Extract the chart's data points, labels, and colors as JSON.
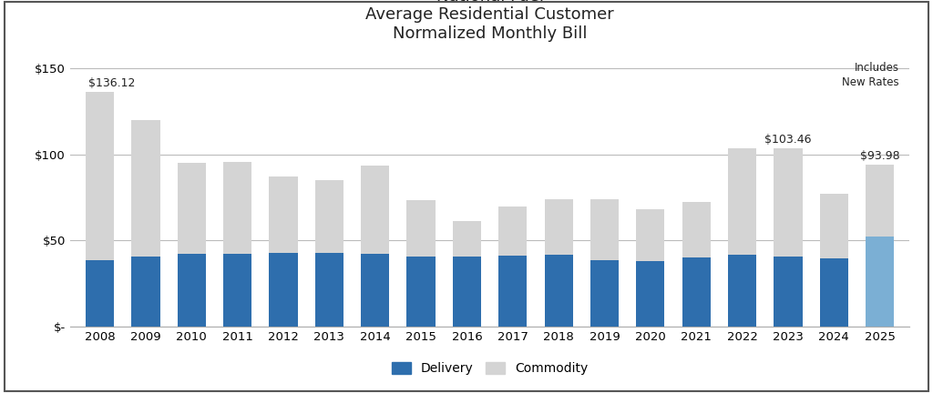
{
  "title": "National Fuel\nAverage Residential Customer\nNormalized Monthly Bill",
  "years": [
    2008,
    2009,
    2010,
    2011,
    2012,
    2013,
    2014,
    2015,
    2016,
    2017,
    2018,
    2019,
    2020,
    2021,
    2022,
    2023,
    2024,
    2025
  ],
  "delivery": [
    38.5,
    40.5,
    42.0,
    42.0,
    42.5,
    42.5,
    42.0,
    40.5,
    40.5,
    41.0,
    41.5,
    38.5,
    38.0,
    40.0,
    41.5,
    40.5,
    39.5,
    52.0
  ],
  "commodity": [
    97.62,
    79.5,
    53.0,
    53.5,
    44.5,
    42.5,
    51.5,
    33.0,
    20.5,
    28.5,
    32.5,
    35.5,
    30.0,
    32.0,
    61.96,
    62.96,
    37.5,
    41.98
  ],
  "delivery_color_normal": "#2E6EAD",
  "delivery_color_2025": "#7BAFD4",
  "commodity_color": "#D4D4D4",
  "background_color": "#FFFFFF",
  "ylim": [
    0,
    160
  ],
  "ytick_labels": [
    "$-",
    "$50",
    "$100",
    "$150"
  ],
  "ytick_values": [
    0,
    50,
    100,
    150
  ],
  "ann_2008_text": "$136.12",
  "ann_2023_text": "$103.46",
  "ann_2025_text": "$93.98",
  "note_text": "Includes\nNew Rates",
  "legend_labels": [
    "Delivery",
    "Commodity"
  ],
  "title_fontsize": 13,
  "tick_fontsize": 9.5,
  "grid_color": "#BBBBBB",
  "bar_width": 0.62
}
